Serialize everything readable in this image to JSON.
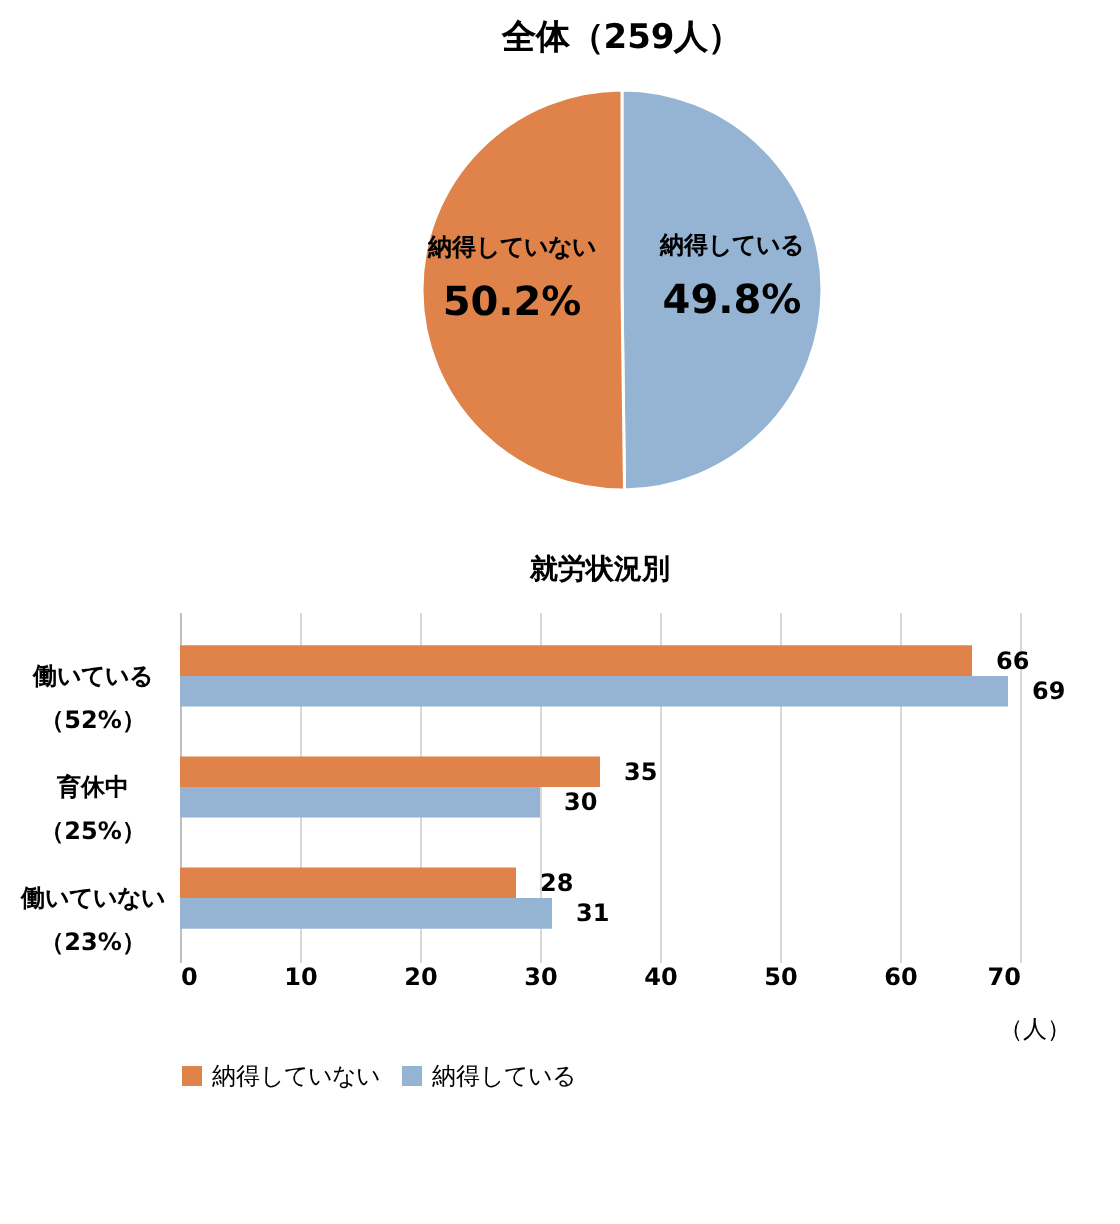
{
  "chart_data": [
    {
      "type": "pie",
      "title": "全体（259人）",
      "categories": [
        "納得している",
        "納得していない"
      ],
      "values": [
        49.8,
        50.2
      ],
      "colors": [
        "#95b4d4",
        "#e0834a"
      ],
      "value_labels": [
        "49.8%",
        "50.2%"
      ],
      "legend": false
    },
    {
      "type": "bar",
      "title": "就労状況別",
      "orientation": "horizontal",
      "categories": [
        "働いている（52%）",
        "育休中（25%）",
        "働いていない（23%）"
      ],
      "series": [
        {
          "name": "納得していない",
          "color": "#e0834a",
          "values": [
            66,
            35,
            28
          ]
        },
        {
          "name": "納得している",
          "color": "#95b4d4",
          "values": [
            69,
            30,
            31
          ]
        }
      ],
      "xlim": [
        0,
        70
      ],
      "xticks": [
        0,
        10,
        20,
        30,
        40,
        50,
        60,
        70
      ],
      "xlabel": "（人）",
      "grid": "x",
      "data_labels": true,
      "legend": "bottom"
    }
  ]
}
